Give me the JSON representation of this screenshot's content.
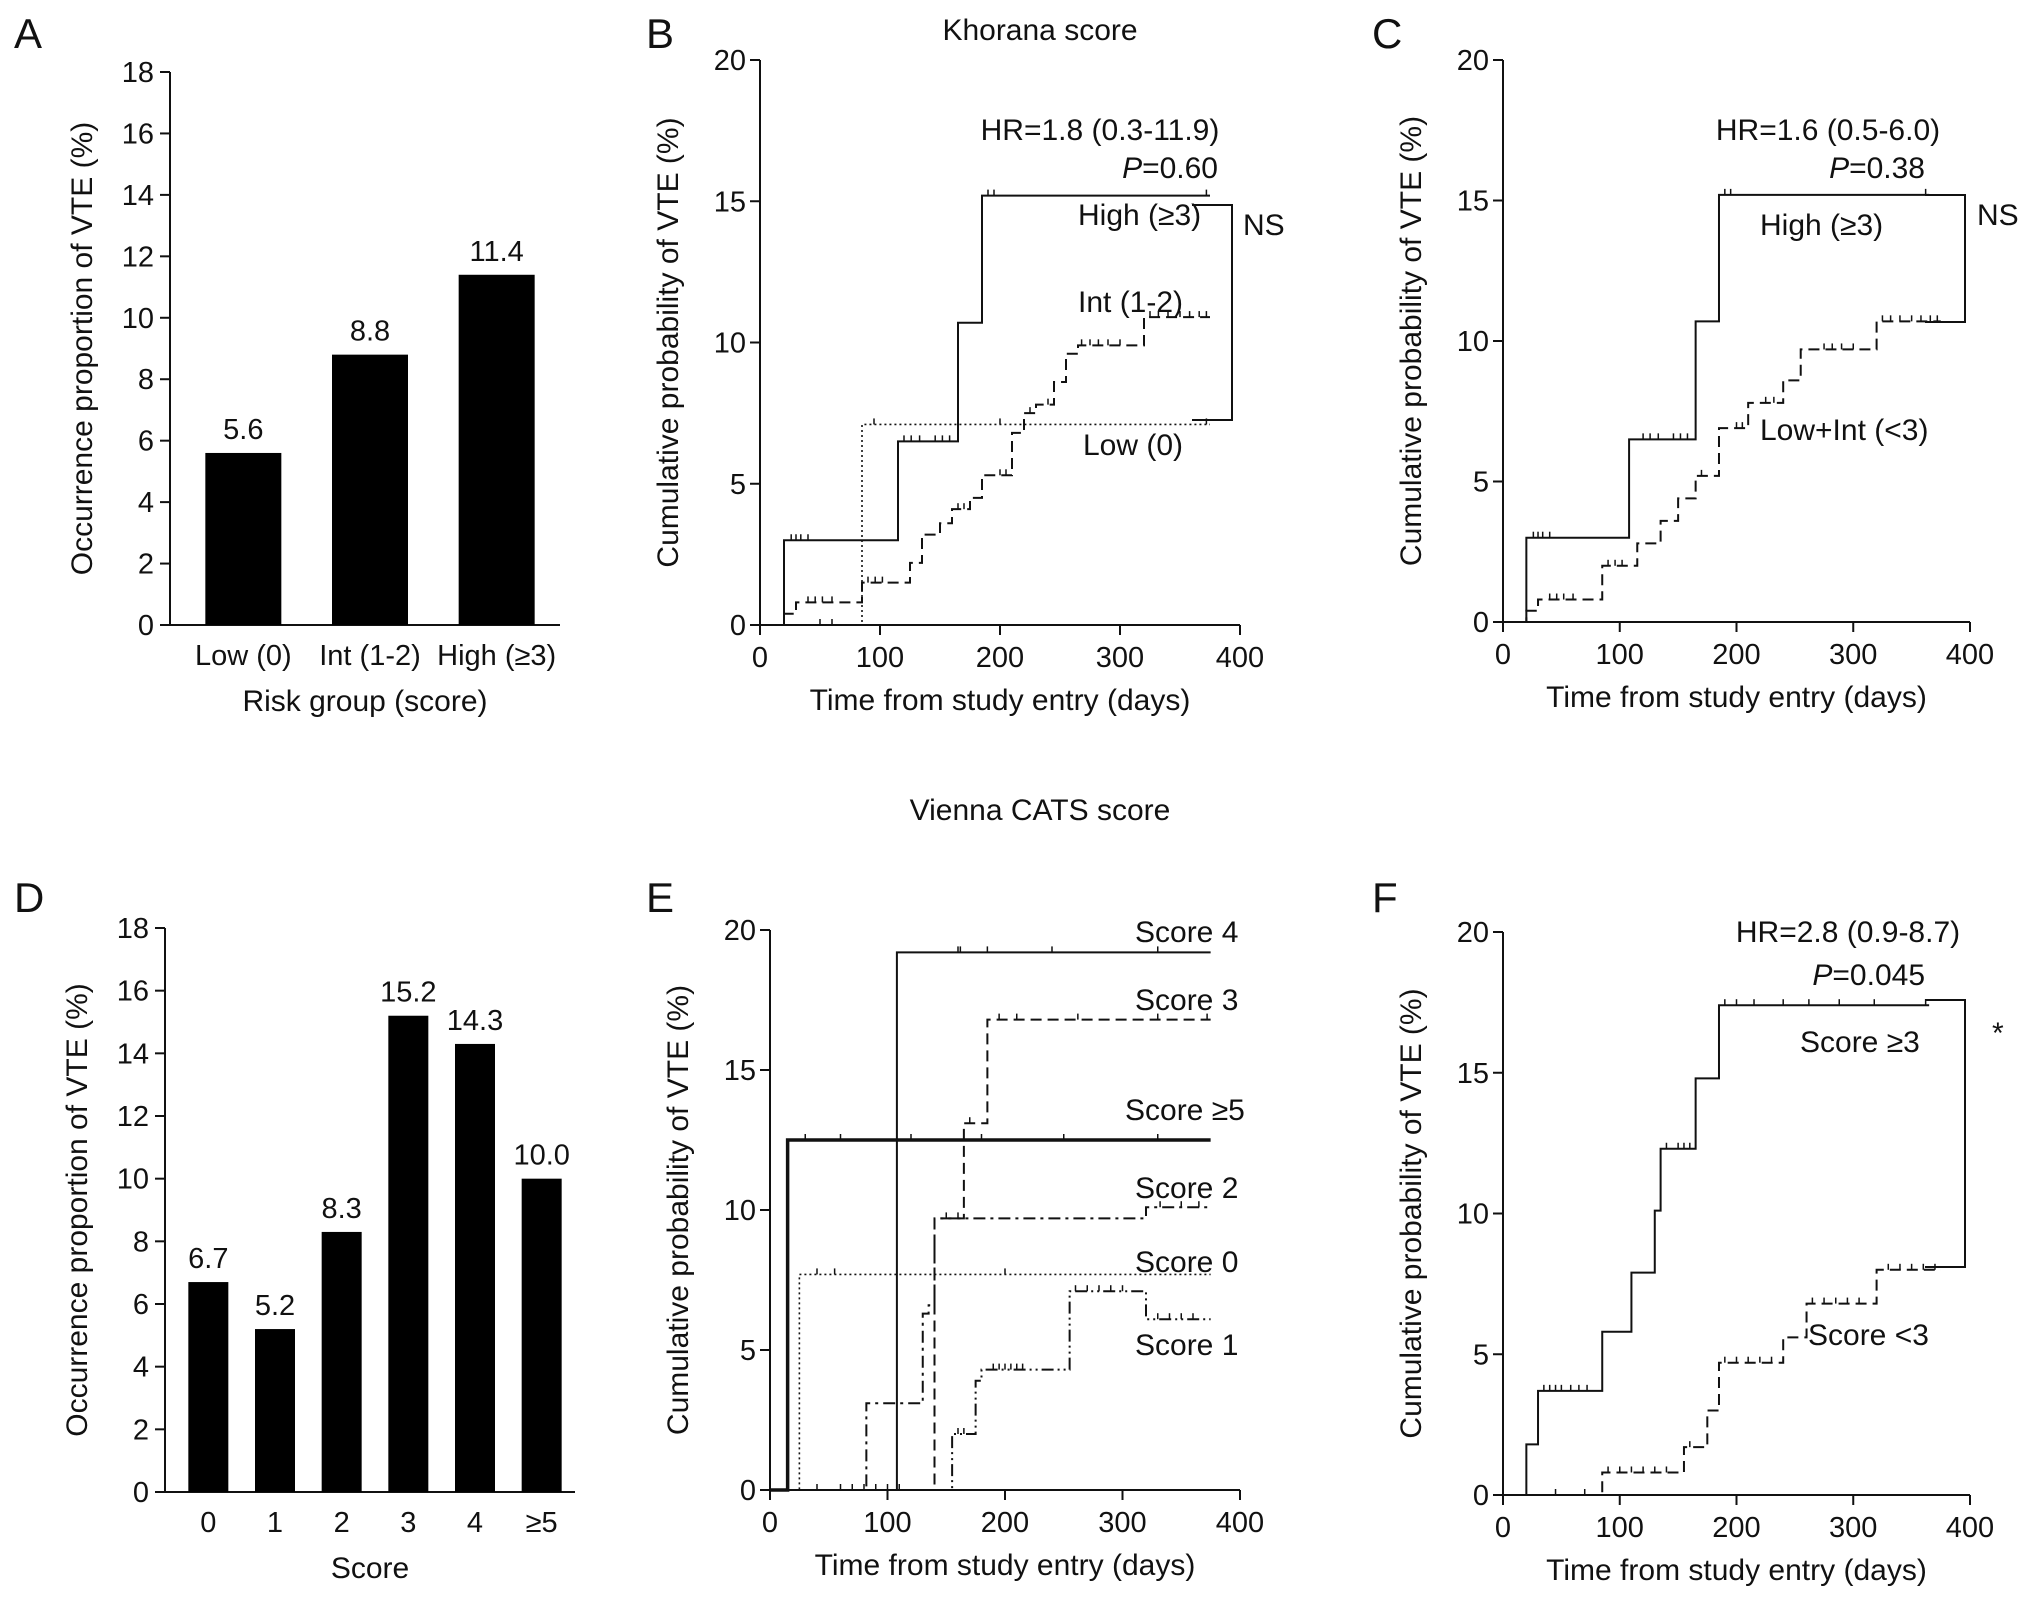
{
  "headers": {
    "khorana": "Khorana score",
    "vienna": "Vienna CATS score"
  },
  "chart_data": [
    {
      "panel": "A",
      "type": "bar",
      "categories": [
        "Low (0)",
        "Int (1-2)",
        "High (≥3)"
      ],
      "values": [
        5.6,
        8.8,
        11.4
      ],
      "value_labels": [
        "5.6",
        "8.8",
        "11.4"
      ],
      "ylim": [
        0,
        18
      ],
      "yticks": [
        0,
        2,
        4,
        6,
        8,
        10,
        12,
        14,
        16,
        18
      ],
      "xlabel": "Risk group (score)",
      "ylabel": "Occurrence proportion of VTE (%)",
      "bar_color": "#000000",
      "grid": false
    },
    {
      "panel": "B",
      "type": "line",
      "step": true,
      "xlim": [
        0,
        400
      ],
      "xticks": [
        0,
        100,
        200,
        300,
        400
      ],
      "ylim": [
        0,
        20
      ],
      "yticks": [
        0,
        5,
        10,
        15,
        20
      ],
      "xlabel": "Time from study entry (days)",
      "ylabel": "Cumulative probability of VTE (%)",
      "hr": "HR=1.8 (0.3-11.9)",
      "p_label": "P",
      "p_value": "=0.60",
      "significance": "NS",
      "series": [
        {
          "name": "High (≥3)",
          "style": "solid",
          "x": [
            0,
            20,
            115,
            165,
            185,
            375
          ],
          "y": [
            0,
            3.0,
            6.5,
            10.7,
            15.2,
            15.2
          ],
          "censor": [
            26,
            30,
            34,
            40,
            120,
            126,
            133,
            146,
            152,
            158,
            190,
            195,
            372
          ]
        },
        {
          "name": "Int (1-2)",
          "style": "dashed",
          "x": [
            0,
            20,
            30,
            85,
            125,
            135,
            150,
            160,
            175,
            185,
            210,
            220,
            230,
            245,
            255,
            265,
            320,
            375
          ],
          "y": [
            0,
            0.4,
            0.8,
            1.5,
            2.2,
            3.2,
            3.6,
            4.1,
            4.5,
            5.3,
            6.8,
            7.5,
            7.8,
            8.6,
            9.6,
            9.9,
            10.9,
            10.9
          ],
          "censor": [
            40,
            46,
            52,
            60,
            90,
            96,
            102,
            165,
            170,
            200,
            205,
            225,
            240,
            268,
            275,
            282,
            290,
            300,
            325,
            332,
            340,
            350,
            358,
            366,
            372
          ]
        },
        {
          "name": "Low (0)",
          "style": "dotted",
          "x": [
            0,
            85,
            375
          ],
          "y": [
            0,
            7.1,
            7.1
          ],
          "censor": [
            50,
            60,
            95,
            200,
            372
          ]
        }
      ]
    },
    {
      "panel": "C",
      "type": "line",
      "step": true,
      "xlim": [
        0,
        400
      ],
      "xticks": [
        0,
        100,
        200,
        300,
        400
      ],
      "ylim": [
        0,
        20
      ],
      "yticks": [
        0,
        5,
        10,
        15,
        20
      ],
      "xlabel": "Time from study entry (days)",
      "ylabel": "Cumulative probability of VTE (%)",
      "hr": "HR=1.6 (0.5-6.0)",
      "p_label": "P",
      "p_value": "=0.38",
      "significance": "NS",
      "series": [
        {
          "name": "High (≥3)",
          "style": "solid",
          "x": [
            0,
            20,
            108,
            165,
            185,
            365
          ],
          "y": [
            0,
            3.0,
            6.5,
            10.7,
            15.2,
            15.2
          ],
          "censor": [
            26,
            30,
            34,
            40,
            120,
            126,
            133,
            146,
            152,
            158,
            190,
            195,
            362
          ]
        },
        {
          "name": "Low+Int (<3)",
          "style": "dashed",
          "x": [
            0,
            20,
            30,
            85,
            115,
            135,
            150,
            165,
            185,
            210,
            240,
            255,
            265,
            320,
            375
          ],
          "y": [
            0,
            0.4,
            0.8,
            2.0,
            2.8,
            3.6,
            4.4,
            5.2,
            6.9,
            7.8,
            8.6,
            9.7,
            9.7,
            10.7,
            10.7
          ],
          "censor": [
            40,
            46,
            52,
            60,
            90,
            96,
            102,
            170,
            200,
            205,
            225,
            232,
            275,
            282,
            290,
            300,
            325,
            332,
            340,
            350,
            358,
            366,
            372
          ]
        }
      ]
    },
    {
      "panel": "D",
      "type": "bar",
      "categories": [
        "0",
        "1",
        "2",
        "3",
        "4",
        "≥5"
      ],
      "values": [
        6.7,
        5.2,
        8.3,
        15.2,
        14.3,
        10.0
      ],
      "value_labels": [
        "6.7",
        "5.2",
        "8.3",
        "15.2",
        "14.3",
        "10.0"
      ],
      "ylim": [
        0,
        18
      ],
      "yticks": [
        0,
        2,
        4,
        6,
        8,
        10,
        12,
        14,
        16,
        18
      ],
      "xlabel": "Score",
      "ylabel": "Occurrence proportion of VTE (%)",
      "bar_color": "#000000",
      "grid": false
    },
    {
      "panel": "E",
      "type": "line",
      "step": true,
      "xlim": [
        0,
        400
      ],
      "xticks": [
        0,
        100,
        200,
        300,
        400
      ],
      "ylim": [
        0,
        20
      ],
      "yticks": [
        0,
        5,
        10,
        15,
        20
      ],
      "xlabel": "Time from study entry (days)",
      "ylabel": "Cumulative probability of VTE (%)",
      "series": [
        {
          "name": "Score 4",
          "style": "solid",
          "x": [
            0,
            108,
            375
          ],
          "y": [
            0,
            19.2,
            19.2
          ],
          "censor": [
            40,
            60,
            80,
            160,
            162,
            185,
            240,
            330
          ]
        },
        {
          "name": "Score 3",
          "style": "dashed",
          "x": [
            0,
            140,
            165,
            185,
            375
          ],
          "y": [
            0,
            9.7,
            13.1,
            16.8,
            16.8
          ],
          "censor": [
            70,
            170,
            195,
            210,
            262,
            330,
            372
          ]
        },
        {
          "name": "Score ≥5",
          "style": "bold",
          "x": [
            0,
            15,
            375
          ],
          "y": [
            0,
            12.5,
            12.5
          ],
          "censor": [
            30,
            60,
            120,
            180,
            250,
            330
          ]
        },
        {
          "name": "Score 2",
          "style": "dashdot",
          "x": [
            0,
            82,
            130,
            135,
            140,
            320,
            375
          ],
          "y": [
            0,
            3.1,
            6.3,
            6.6,
            9.7,
            10.1,
            10.1
          ],
          "censor": [
            150,
            160,
            332,
            350,
            365
          ]
        },
        {
          "name": "Score 0",
          "style": "dotted",
          "x": [
            0,
            25,
            375
          ],
          "y": [
            0,
            7.7,
            7.7
          ],
          "censor": [
            40,
            55,
            140,
            200
          ]
        },
        {
          "name": "Score 1",
          "style": "dashdotdot",
          "x": [
            0,
            155,
            175,
            180,
            185,
            245,
            255,
            320,
            375
          ],
          "y": [
            0,
            2.0,
            3.9,
            4.3,
            4.3,
            4.3,
            7.1,
            6.1,
            6.1
          ],
          "censor": [
            90,
            100,
            110,
            160,
            165,
            190,
            195,
            200,
            205,
            210,
            215,
            260,
            270,
            280,
            290,
            300,
            330,
            340,
            350,
            360
          ]
        }
      ]
    },
    {
      "panel": "F",
      "type": "line",
      "step": true,
      "xlim": [
        0,
        400
      ],
      "xticks": [
        0,
        100,
        200,
        300,
        400
      ],
      "ylim": [
        0,
        20
      ],
      "yticks": [
        0,
        5,
        10,
        15,
        20
      ],
      "xlabel": "Time from study entry (days)",
      "ylabel": "Cumulative probability of VTE (%)",
      "hr": "HR=2.8 (0.9-8.7)",
      "p_label": "P",
      "p_value": "=0.045",
      "significance": "*",
      "series": [
        {
          "name": "Score ≥3",
          "style": "solid",
          "x": [
            0,
            20,
            30,
            85,
            110,
            130,
            135,
            165,
            185,
            365
          ],
          "y": [
            0,
            1.8,
            3.7,
            5.8,
            7.9,
            10.1,
            12.3,
            14.8,
            17.4,
            17.4
          ],
          "censor": [
            35,
            40,
            45,
            50,
            58,
            65,
            72,
            140,
            150,
            155,
            160,
            190,
            200,
            215,
            240,
            262,
            288,
            318,
            362
          ]
        },
        {
          "name": "Score <3",
          "style": "dashed",
          "x": [
            0,
            85,
            155,
            175,
            185,
            240,
            260,
            320,
            375
          ],
          "y": [
            0,
            0.8,
            1.7,
            3.0,
            4.7,
            5.6,
            6.8,
            8.0,
            8.0
          ],
          "censor": [
            45,
            70,
            90,
            100,
            110,
            120,
            130,
            140,
            160,
            190,
            200,
            210,
            220,
            230,
            265,
            275,
            285,
            295,
            305,
            330,
            340,
            350,
            360,
            370
          ]
        }
      ]
    }
  ]
}
